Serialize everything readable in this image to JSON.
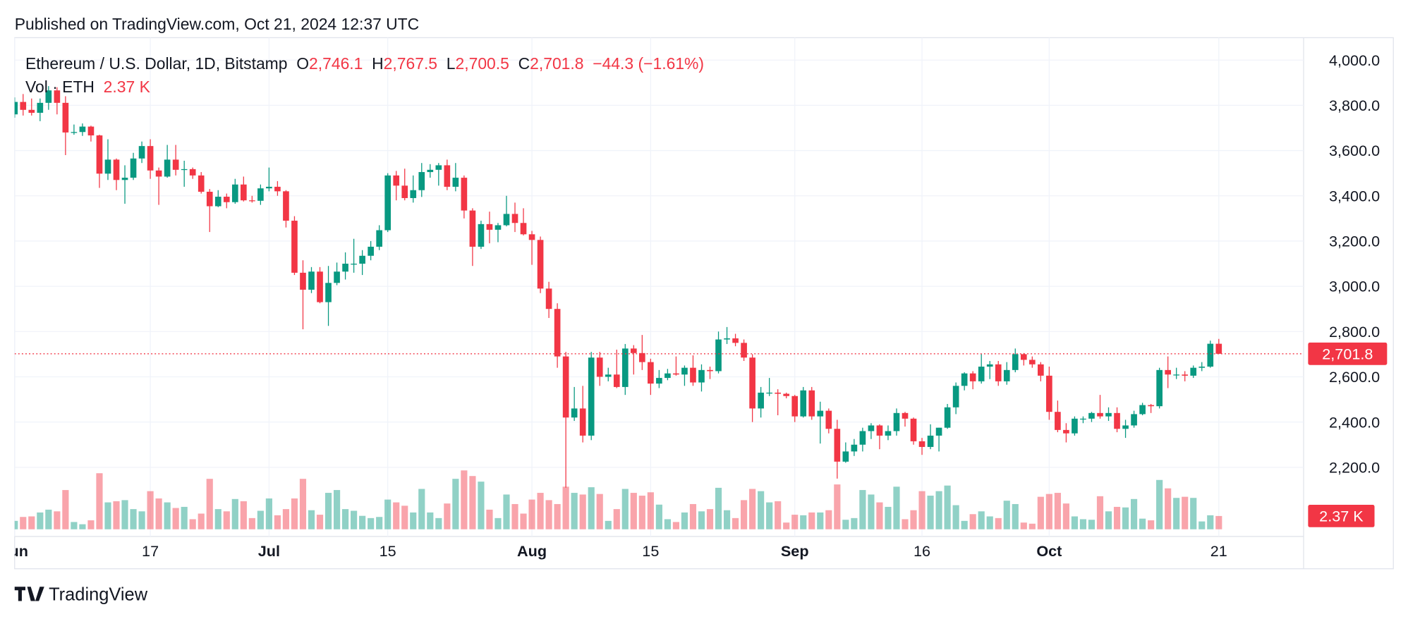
{
  "chart_data": {
    "type": "candlestick",
    "published": "Published on TradingView.com, Oct 21, 2024 12:37 UTC",
    "title": "Ethereum / U.S. Dollar, 1D, Bitstamp",
    "legend": {
      "o_key": "O",
      "o": "2,746.1",
      "h_key": "H",
      "h": "2,767.5",
      "l_key": "L",
      "l": "2,700.5",
      "c_key": "C",
      "c": "2,701.8",
      "change": "−44.3 (−1.61%)"
    },
    "volume_title": "Vol · ETH",
    "volume_value_label": "2.37 K",
    "last_close_label": "2,701.8",
    "last_volume_label": "2.37 K",
    "branding": "TradingView",
    "up_color": "#089981",
    "down_color": "#f23645",
    "grid": true,
    "x": [
      "2024-06-01",
      "2024-06-02",
      "2024-06-03",
      "2024-06-04",
      "2024-06-05",
      "2024-06-06",
      "2024-06-07",
      "2024-06-08",
      "2024-06-09",
      "2024-06-10",
      "2024-06-11",
      "2024-06-12",
      "2024-06-13",
      "2024-06-14",
      "2024-06-15",
      "2024-06-16",
      "2024-06-17",
      "2024-06-18",
      "2024-06-19",
      "2024-06-20",
      "2024-06-21",
      "2024-06-22",
      "2024-06-23",
      "2024-06-24",
      "2024-06-25",
      "2024-06-26",
      "2024-06-27",
      "2024-06-28",
      "2024-06-29",
      "2024-06-30",
      "2024-07-01",
      "2024-07-02",
      "2024-07-03",
      "2024-07-04",
      "2024-07-05",
      "2024-07-06",
      "2024-07-07",
      "2024-07-08",
      "2024-07-09",
      "2024-07-10",
      "2024-07-11",
      "2024-07-12",
      "2024-07-13",
      "2024-07-14",
      "2024-07-15",
      "2024-07-16",
      "2024-07-17",
      "2024-07-18",
      "2024-07-19",
      "2024-07-20",
      "2024-07-21",
      "2024-07-22",
      "2024-07-23",
      "2024-07-24",
      "2024-07-25",
      "2024-07-26",
      "2024-07-27",
      "2024-07-28",
      "2024-07-29",
      "2024-07-30",
      "2024-07-31",
      "2024-08-01",
      "2024-08-02",
      "2024-08-03",
      "2024-08-04",
      "2024-08-05",
      "2024-08-06",
      "2024-08-07",
      "2024-08-08",
      "2024-08-09",
      "2024-08-10",
      "2024-08-11",
      "2024-08-12",
      "2024-08-13",
      "2024-08-14",
      "2024-08-15",
      "2024-08-16",
      "2024-08-17",
      "2024-08-18",
      "2024-08-19",
      "2024-08-20",
      "2024-08-21",
      "2024-08-22",
      "2024-08-23",
      "2024-08-24",
      "2024-08-25",
      "2024-08-26",
      "2024-08-27",
      "2024-08-28",
      "2024-08-29",
      "2024-08-30",
      "2024-08-31",
      "2024-09-01",
      "2024-09-02",
      "2024-09-03",
      "2024-09-04",
      "2024-09-05",
      "2024-09-06",
      "2024-09-07",
      "2024-09-08",
      "2024-09-09",
      "2024-09-10",
      "2024-09-11",
      "2024-09-12",
      "2024-09-13",
      "2024-09-14",
      "2024-09-15",
      "2024-09-16",
      "2024-09-17",
      "2024-09-18",
      "2024-09-19",
      "2024-09-20",
      "2024-09-21",
      "2024-09-22",
      "2024-09-23",
      "2024-09-24",
      "2024-09-25",
      "2024-09-26",
      "2024-09-27",
      "2024-09-28",
      "2024-09-29",
      "2024-09-30",
      "2024-10-01",
      "2024-10-02",
      "2024-10-03",
      "2024-10-04",
      "2024-10-05",
      "2024-10-06",
      "2024-10-07",
      "2024-10-08",
      "2024-10-09",
      "2024-10-10",
      "2024-10-11",
      "2024-10-12",
      "2024-10-13",
      "2024-10-14",
      "2024-10-15",
      "2024-10-16",
      "2024-10-17",
      "2024-10-18",
      "2024-10-19",
      "2024-10-20",
      "2024-10-21"
    ],
    "open": [
      3760,
      3815,
      3780,
      3767,
      3811,
      3866,
      3811,
      3680,
      3682,
      3706,
      3667,
      3498,
      3560,
      3470,
      3480,
      3565,
      3620,
      3512,
      3485,
      3560,
      3515,
      3518,
      3490,
      3418,
      3354,
      3396,
      3372,
      3450,
      3380,
      3378,
      3433,
      3440,
      3420,
      3290,
      3060,
      2985,
      3065,
      2930,
      3015,
      3065,
      3100,
      3100,
      3135,
      3175,
      3248,
      3490,
      3445,
      3390,
      3425,
      3505,
      3515,
      3535,
      3440,
      3480,
      3335,
      3175,
      3275,
      3250,
      3270,
      3320,
      3280,
      3230,
      3205,
      2990,
      2900,
      2690,
      2420,
      2460,
      2340,
      2685,
      2600,
      2610,
      2555,
      2725,
      2705,
      2665,
      2570,
      2595,
      2615,
      2610,
      2640,
      2575,
      2630,
      2625,
      2765,
      2770,
      2750,
      2685,
      2460,
      2530,
      2530,
      2525,
      2515,
      2425,
      2540,
      2425,
      2450,
      2370,
      2225,
      2270,
      2300,
      2360,
      2385,
      2340,
      2360,
      2440,
      2415,
      2315,
      2290,
      2340,
      2375,
      2465,
      2560,
      2615,
      2580,
      2645,
      2655,
      2580,
      2630,
      2700,
      2675,
      2655,
      2605,
      2445,
      2365,
      2350,
      2415,
      2415,
      2440,
      2425,
      2440,
      2370,
      2385,
      2435,
      2475,
      2470,
      2630,
      2610,
      2610,
      2605,
      2640,
      2645,
      2746.1
    ],
    "high": [
      3835,
      3850,
      3830,
      3830,
      3885,
      3880,
      3840,
      3715,
      3720,
      3710,
      3670,
      3650,
      3565,
      3535,
      3590,
      3640,
      3650,
      3525,
      3625,
      3625,
      3555,
      3525,
      3505,
      3430,
      3425,
      3410,
      3475,
      3485,
      3400,
      3450,
      3525,
      3465,
      3425,
      3310,
      3115,
      3085,
      3085,
      3090,
      3105,
      3150,
      3210,
      3160,
      3200,
      3270,
      3500,
      3510,
      3520,
      3490,
      3545,
      3540,
      3545,
      3560,
      3545,
      3490,
      3345,
      3290,
      3330,
      3280,
      3400,
      3370,
      3345,
      3245,
      3220,
      3020,
      2925,
      2710,
      2555,
      2560,
      2710,
      2710,
      2640,
      2720,
      2745,
      2740,
      2785,
      2680,
      2630,
      2635,
      2690,
      2650,
      2695,
      2655,
      2645,
      2800,
      2820,
      2790,
      2765,
      2700,
      2555,
      2595,
      2545,
      2530,
      2520,
      2555,
      2555,
      2490,
      2460,
      2410,
      2310,
      2325,
      2375,
      2395,
      2390,
      2385,
      2460,
      2445,
      2420,
      2330,
      2390,
      2375,
      2480,
      2575,
      2620,
      2625,
      2700,
      2670,
      2670,
      2665,
      2725,
      2705,
      2690,
      2665,
      2645,
      2495,
      2395,
      2425,
      2425,
      2445,
      2520,
      2465,
      2465,
      2410,
      2450,
      2485,
      2480,
      2640,
      2690,
      2640,
      2625,
      2650,
      2665,
      2760,
      2767.5
    ],
    "low": [
      3745,
      3755,
      3755,
      3730,
      3780,
      3760,
      3580,
      3670,
      3665,
      3640,
      3435,
      3470,
      3425,
      3365,
      3470,
      3545,
      3475,
      3360,
      3480,
      3490,
      3440,
      3475,
      3410,
      3240,
      3350,
      3345,
      3365,
      3375,
      3370,
      3360,
      3420,
      3400,
      3260,
      3050,
      2810,
      2970,
      2925,
      2825,
      3005,
      3030,
      3060,
      3050,
      3115,
      3160,
      3240,
      3380,
      3380,
      3370,
      3395,
      3480,
      3445,
      3425,
      3420,
      3300,
      3090,
      3165,
      3190,
      3195,
      3265,
      3240,
      3225,
      3095,
      2970,
      2860,
      2640,
      2110,
      2405,
      2310,
      2320,
      2560,
      2580,
      2550,
      2520,
      2610,
      2630,
      2520,
      2550,
      2585,
      2605,
      2560,
      2560,
      2535,
      2590,
      2615,
      2745,
      2735,
      2670,
      2400,
      2420,
      2515,
      2430,
      2505,
      2400,
      2420,
      2410,
      2305,
      2350,
      2150,
      2220,
      2250,
      2270,
      2325,
      2280,
      2320,
      2340,
      2380,
      2300,
      2255,
      2280,
      2270,
      2370,
      2435,
      2540,
      2545,
      2570,
      2590,
      2560,
      2565,
      2620,
      2650,
      2640,
      2580,
      2410,
      2355,
      2310,
      2340,
      2395,
      2400,
      2415,
      2405,
      2355,
      2330,
      2375,
      2430,
      2440,
      2460,
      2550,
      2590,
      2580,
      2595,
      2625,
      2640,
      2700.5
    ],
    "close": [
      3815,
      3780,
      3767,
      3811,
      3866,
      3811,
      3680,
      3682,
      3706,
      3667,
      3498,
      3560,
      3470,
      3480,
      3565,
      3620,
      3512,
      3485,
      3560,
      3515,
      3518,
      3490,
      3418,
      3354,
      3396,
      3372,
      3450,
      3380,
      3378,
      3433,
      3440,
      3420,
      3290,
      3060,
      2985,
      3065,
      2930,
      3015,
      3065,
      3100,
      3100,
      3135,
      3175,
      3248,
      3490,
      3445,
      3390,
      3425,
      3505,
      3515,
      3535,
      3440,
      3480,
      3335,
      3175,
      3275,
      3250,
      3270,
      3320,
      3280,
      3230,
      3205,
      2990,
      2900,
      2690,
      2420,
      2460,
      2340,
      2685,
      2600,
      2610,
      2555,
      2725,
      2705,
      2665,
      2570,
      2595,
      2615,
      2610,
      2640,
      2575,
      2630,
      2625,
      2765,
      2770,
      2750,
      2685,
      2460,
      2530,
      2530,
      2525,
      2515,
      2425,
      2540,
      2425,
      2450,
      2370,
      2225,
      2270,
      2300,
      2360,
      2385,
      2340,
      2360,
      2440,
      2415,
      2315,
      2290,
      2340,
      2375,
      2465,
      2560,
      2615,
      2580,
      2645,
      2655,
      2580,
      2630,
      2700,
      2675,
      2655,
      2605,
      2445,
      2365,
      2350,
      2415,
      2415,
      2440,
      2425,
      2440,
      2370,
      2385,
      2435,
      2475,
      2470,
      2630,
      2610,
      2610,
      2605,
      2640,
      2645,
      2746.1,
      2701.8
    ],
    "volume": [
      1.5,
      2.2,
      2.3,
      3.0,
      3.5,
      3.2,
      7.0,
      1.3,
      0.9,
      1.6,
      10.0,
      4.8,
      5.0,
      5.2,
      3.6,
      3.2,
      6.8,
      5.5,
      4.8,
      3.8,
      4.0,
      1.8,
      2.8,
      9.0,
      3.6,
      3.2,
      5.4,
      5.0,
      2.0,
      3.3,
      5.5,
      2.5,
      3.6,
      5.5,
      9.0,
      3.4,
      2.6,
      6.5,
      7.0,
      3.6,
      3.3,
      2.4,
      2.0,
      2.2,
      5.3,
      4.8,
      4.2,
      3.0,
      7.2,
      3.0,
      2.0,
      4.6,
      9.0,
      10.5,
      9.5,
      8.5,
      3.5,
      2.0,
      6.2,
      4.5,
      2.8,
      5.3,
      6.5,
      5.2,
      4.5,
      7.6,
      6.5,
      6.2,
      7.5,
      6.3,
      1.5,
      3.6,
      7.2,
      6.5,
      6.0,
      6.6,
      4.4,
      1.8,
      1.3,
      3.0,
      4.5,
      3.2,
      3.6,
      7.4,
      3.4,
      2.0,
      5.2,
      7.2,
      6.8,
      4.8,
      5.0,
      1.2,
      2.6,
      2.5,
      3.0,
      3.0,
      3.4,
      8.0,
      1.7,
      2.0,
      7.0,
      6.2,
      4.8,
      4.0,
      7.6,
      1.8,
      3.4,
      6.8,
      6.0,
      6.8,
      7.8,
      4.3,
      1.5,
      2.7,
      3.2,
      2.3,
      2.0,
      5.1,
      4.5,
      1.2,
      1.0,
      5.8,
      6.3,
      6.5,
      4.6,
      2.3,
      1.8,
      1.7,
      5.9,
      3.2,
      4.0,
      3.9,
      5.4,
      1.9,
      1.6,
      8.8,
      7.3,
      5.6,
      5.8,
      5.6,
      1.4,
      2.5,
      2.37
    ],
    "xlim": [
      "2024-06-01",
      "2024-10-31"
    ],
    "xticks": [
      {
        "value": "2024-06-01",
        "label": "Jun"
      },
      {
        "value": "2024-06-17",
        "label": "17"
      },
      {
        "value": "2024-07-01",
        "label": "Jul"
      },
      {
        "value": "2024-07-15",
        "label": "15"
      },
      {
        "value": "2024-08-01",
        "label": "Aug"
      },
      {
        "value": "2024-08-15",
        "label": "15"
      },
      {
        "value": "2024-09-01",
        "label": "Sep"
      },
      {
        "value": "2024-09-16",
        "label": "16"
      },
      {
        "value": "2024-10-01",
        "label": "Oct"
      },
      {
        "value": "2024-10-21",
        "label": "21"
      }
    ],
    "ylim": [
      1926,
      4099
    ],
    "yticks": [
      {
        "value": 2200,
        "label": "2,200.0"
      },
      {
        "value": 2400,
        "label": "2,400.0"
      },
      {
        "value": 2600,
        "label": "2,600.0"
      },
      {
        "value": 2800,
        "label": "2,800.0"
      },
      {
        "value": 3000,
        "label": "3,000.0"
      },
      {
        "value": 3200,
        "label": "3,200.0"
      },
      {
        "value": 3400,
        "label": "3,400.0"
      },
      {
        "value": 3600,
        "label": "3,600.0"
      },
      {
        "value": 3800,
        "label": "3,800.0"
      },
      {
        "value": 4000,
        "label": "4,000.0"
      }
    ],
    "vlim": [
      0,
      24
    ]
  }
}
